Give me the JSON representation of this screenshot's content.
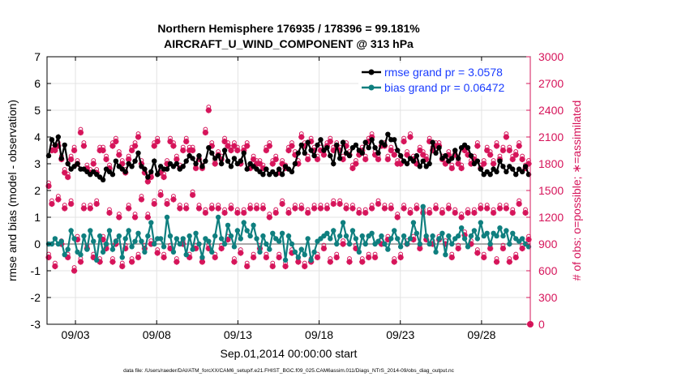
{
  "title_line1": "Northern Hemisphere 176935 / 178396 = 99.181%",
  "title_line2": "AIRCRAFT_U_WIND_COMPONENT @ 313 hPa",
  "xlabel": "Sep.01,2014 00:00:00 start",
  "ylabel_left": "rmse and bias (model - observation)",
  "ylabel_right": "# of obs: o=possible; ∗=assimilated",
  "footer": "data file: /Users/raeder/DAI/ATM_forcXX/CAM6_setup/f.e21.FHIST_BGC.f09_025.CAM6assim.011/Diags_NTrS_2014-09/obs_diag_output.nc",
  "legend": [
    {
      "label": "rmse grand pr = 3.0578",
      "color": "#000000",
      "label_color": "#1a3cff"
    },
    {
      "label": "bias grand pr = 0.06472",
      "color": "#0f7f7f",
      "label_color": "#1a3cff"
    }
  ],
  "colors": {
    "rmse": "#000000",
    "bias": "#0f7f7f",
    "obs": "#d6145a",
    "zero_line": "#aaaaaa"
  },
  "chart_data": {
    "type": "line",
    "x_tick_labels": [
      "09/03",
      "09/08",
      "09/13",
      "09/18",
      "09/23",
      "09/28"
    ],
    "x_tick_days": [
      3,
      8,
      13,
      18,
      23,
      28
    ],
    "x_range_days": [
      1.25,
      31.0
    ],
    "y_left_range": [
      -3,
      7
    ],
    "y_left_ticks": [
      -3,
      -2,
      -1,
      0,
      1,
      2,
      3,
      4,
      5,
      6,
      7
    ],
    "y_right_range": [
      0,
      3000
    ],
    "y_right_ticks": [
      0,
      300,
      600,
      900,
      1200,
      1500,
      1800,
      2100,
      2400,
      2700,
      3000
    ],
    "grid": true,
    "legend_position": "top-right",
    "series": [
      {
        "name": "rmse grand pr = 3.0578",
        "axis": "left",
        "marker": "circle",
        "values": [
          3.3,
          3.9,
          3.7,
          4.0,
          3.2,
          3.7,
          3.0,
          2.8,
          2.9,
          3.0,
          2.8,
          2.8,
          2.7,
          2.6,
          2.7,
          2.6,
          2.5,
          2.4,
          2.8,
          2.7,
          2.6,
          3.1,
          2.9,
          2.8,
          2.7,
          3.0,
          2.9,
          3.1,
          3.4,
          2.9,
          2.8,
          2.5,
          2.7,
          3.1,
          2.6,
          2.9,
          2.8,
          2.8,
          3.0,
          2.9,
          3.0,
          2.8,
          2.9,
          3.1,
          3.3,
          3.2,
          3.0,
          3.3,
          2.9,
          3.1,
          3.6,
          3.4,
          3.2,
          3.3,
          3.0,
          3.5,
          3.1,
          2.9,
          3.2,
          3.0,
          3.1,
          3.4,
          2.8,
          3.0,
          2.9,
          2.8,
          2.7,
          2.6,
          2.8,
          2.6,
          2.7,
          2.6,
          2.8,
          2.6,
          2.9,
          2.8,
          2.7,
          3.0,
          3.4,
          3.7,
          3.4,
          3.8,
          3.5,
          3.3,
          3.7,
          3.9,
          3.5,
          3.6,
          3.3,
          3.0,
          3.7,
          3.2,
          3.8,
          3.4,
          3.3,
          3.6,
          3.7,
          3.5,
          3.4,
          3.8,
          3.6,
          3.9,
          3.6,
          3.4,
          3.8,
          3.7,
          4.1,
          3.9,
          3.9,
          3.5,
          3.3,
          3.1,
          3.0,
          3.2,
          3.1,
          3.3,
          2.9,
          3.1,
          2.9,
          3.0,
          3.8,
          3.4,
          3.6,
          3.2,
          3.3,
          3.1,
          3.2,
          3.5,
          3.2,
          3.6,
          3.7,
          3.6,
          3.3,
          3.0,
          3.1,
          2.8,
          2.6,
          2.7,
          2.6,
          2.8,
          2.7,
          3.1,
          2.9,
          2.7,
          2.9,
          2.8,
          2.6,
          2.8,
          2.7,
          2.9,
          2.6
        ]
      },
      {
        "name": "bias grand pr = 0.06472",
        "axis": "left",
        "marker": "circle",
        "values": [
          0.0,
          0.0,
          0.2,
          0.0,
          0.1,
          -0.4,
          -0.2,
          0.5,
          0.2,
          -0.3,
          -0.4,
          0.3,
          -0.2,
          0.5,
          0.1,
          -0.6,
          0.3,
          -0.3,
          0.0,
          0.5,
          -0.2,
          0.1,
          0.3,
          -0.5,
          0.2,
          0.5,
          -0.1,
          0.1,
          0.4,
          0.1,
          -0.3,
          0.3,
          0.8,
          0.0,
          0.2,
          0.2,
          -0.1,
          1.0,
          0.3,
          -0.3,
          0.2,
          0.0,
          0.2,
          -0.4,
          0.3,
          -0.2,
          0.4,
          0.0,
          -0.5,
          0.2,
          0.1,
          -0.3,
          0.3,
          1.0,
          0.2,
          0.0,
          0.7,
          0.3,
          -0.1,
          0.5,
          0.2,
          0.8,
          0.5,
          0.3,
          0.7,
          0.2,
          -0.3,
          0.3,
          0.0,
          -0.2,
          0.4,
          0.2,
          0.1,
          0.4,
          -0.6,
          0.3,
          0.0,
          -0.3,
          -0.5,
          -0.2,
          -0.4,
          0.2,
          -0.6,
          -0.3,
          0.1,
          0.2,
          0.3,
          0.4,
          0.2,
          0.5,
          0.0,
          0.3,
          0.8,
          0.3,
          0.0,
          0.5,
          0.2,
          -0.3,
          0.3,
          0.0,
          0.3,
          0.4,
          0.0,
          0.1,
          0.3,
          0.0,
          -0.2,
          0.2,
          0.5,
          0.2,
          -0.1,
          0.3,
          0.0,
          0.2,
          0.8,
          0.4,
          0.0,
          1.4,
          0.3,
          0.0,
          0.3,
          -0.3,
          0.2,
          0.4,
          -0.4,
          0.3,
          0.0,
          0.2,
          0.3,
          0.6,
          0.2,
          -0.1,
          0.3,
          0.5,
          0.2,
          0.8,
          0.3,
          0.4,
          0.0,
          0.4,
          0.3,
          0.6,
          0.3,
          0.5,
          0.0,
          0.4,
          0.2,
          0.1,
          0.2,
          0.0,
          -0.1
        ]
      },
      {
        "name": "",
        "axis": "right",
        "marker": "asterisk",
        "values": [
          1550,
          1950,
          1950,
          2000,
          1850,
          1700,
          1650,
          1850,
          1950,
          1800,
          2150,
          2000,
          1750,
          1700,
          1800,
          1700,
          1950,
          1950,
          1850,
          1750,
          2000,
          2050,
          1900,
          1800,
          1700,
          1850,
          1950,
          2000,
          2100,
          1800,
          1700,
          1600,
          1650,
          2000,
          2050,
          1700,
          1650,
          1800,
          2050,
          2000,
          1850,
          1750,
          1950,
          2050,
          1950,
          1950,
          1750,
          1850,
          1750,
          2150,
          2400,
          2000,
          1800,
          1900,
          1850,
          2050,
          2000,
          1950,
          2000,
          1950,
          1800,
          1950,
          2000,
          1750,
          1850,
          1800,
          1800,
          1750,
          1950,
          2000,
          1800,
          1850,
          1700,
          1800,
          1750,
          1950,
          2000,
          1900,
          1800,
          2100,
          2000,
          1850,
          2050,
          1950,
          1850,
          1950,
          1900,
          2000,
          2050,
          1950,
          2000,
          1950,
          1850,
          2000,
          1900,
          1750,
          1800,
          1900,
          1950,
          1850,
          2050,
          2100,
          1900,
          1850,
          2000,
          2000,
          1850,
          1950,
          1900,
          1800,
          1800,
          2050,
          1900,
          2100,
          1850,
          1800,
          1950,
          1900,
          1850,
          2050,
          1950,
          2000,
          2000,
          1850,
          1800,
          1900,
          1750,
          1900,
          1800,
          1750,
          1950,
          1900,
          1800,
          1850,
          2000,
          1750,
          1800,
          1950,
          1900,
          1800,
          2000,
          1850,
          1950,
          2100,
          1950,
          1850,
          1900,
          2000,
          1850,
          1750,
          1800
        ]
      },
      {
        "name": "",
        "axis": "right",
        "marker": "asterisk",
        "values": [
          750,
          1350,
          650,
          1400,
          900,
          1300,
          750,
          1350,
          600,
          950,
          700,
          1300,
          850,
          1300,
          750,
          1350,
          700,
          950,
          850,
          1250,
          700,
          900,
          1200,
          650,
          850,
          1300,
          700,
          1200,
          750,
          1400,
          850,
          1200,
          900,
          1350,
          800,
          1450,
          750,
          1350,
          850,
          1400,
          700,
          1300,
          900,
          1300,
          750,
          1450,
          850,
          1300,
          700,
          1250,
          850,
          1300,
          750,
          1300,
          850,
          1250,
          950,
          1300,
          700,
          1250,
          800,
          1250,
          650,
          1300,
          750,
          1300,
          850,
          1300,
          750,
          1200,
          650,
          1250,
          750,
          1350,
          650,
          1250,
          800,
          1300,
          700,
          1300,
          650,
          1250,
          700,
          1300,
          750,
          1300,
          850,
          1300,
          700,
          1350,
          750,
          1350,
          900,
          1300,
          700,
          1300,
          850,
          1250,
          700,
          1250,
          750,
          1300,
          750,
          1350,
          900,
          1300,
          950,
          1300,
          700,
          1200,
          750,
          1300,
          900,
          1250,
          950,
          1300,
          850,
          1250,
          950,
          1250,
          900,
          1300,
          950,
          1250,
          900,
          1300,
          750,
          1250,
          850,
          1200,
          1000,
          1250,
          900,
          1250,
          800,
          1300,
          750,
          1300,
          850,
          1250,
          700,
          1300,
          850,
          1300,
          700,
          1250,
          750,
          1350,
          850,
          1250,
          950
        ]
      }
    ]
  }
}
